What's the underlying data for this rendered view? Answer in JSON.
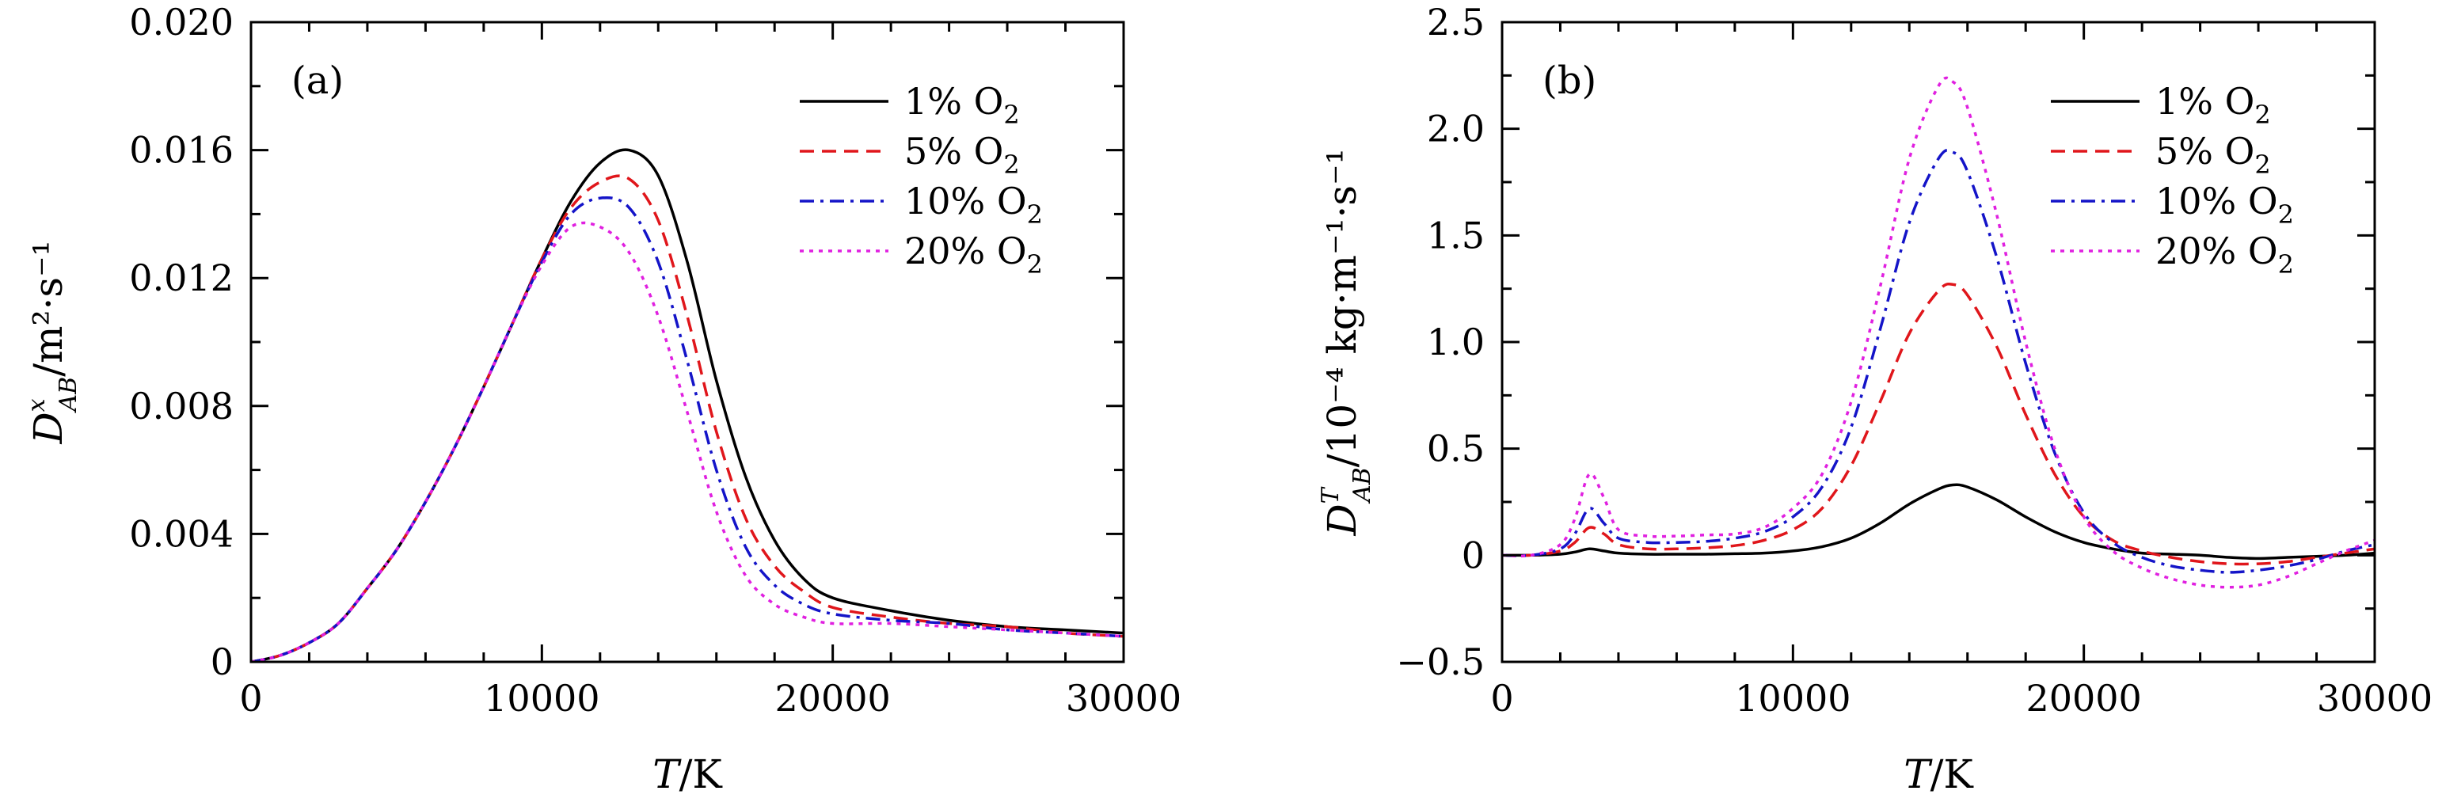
{
  "chart_data": [
    {
      "type": "line",
      "panel_label": "(a)",
      "xlabel": {
        "main": "T",
        "rest": "/K"
      },
      "ylabel": {
        "main": "D",
        "sup": "x",
        "sub": "AB",
        "rest": "/m²·s⁻¹"
      },
      "xlim": [
        0,
        30000
      ],
      "ylim": [
        0,
        0.02
      ],
      "xticks": [
        0,
        10000,
        20000,
        30000
      ],
      "xtick_labels": [
        "0",
        "10000",
        "20000",
        "30000"
      ],
      "yticks": [
        0,
        0.004,
        0.008,
        0.012,
        0.016,
        0.02
      ],
      "ytick_labels": [
        "0",
        "0.004",
        "0.008",
        "0.012",
        "0.016",
        "0.020"
      ],
      "legend_position": "upper-right",
      "grid": false,
      "x": [
        0,
        1000,
        2000,
        3000,
        4000,
        5000,
        6000,
        7000,
        8000,
        9000,
        10000,
        11000,
        12000,
        13000,
        14000,
        15000,
        16000,
        17000,
        18000,
        19000,
        20000,
        22000,
        24000,
        26000,
        28000,
        30000
      ],
      "series": [
        {
          "name": "1% O",
          "subscript": "2",
          "color": "#000000",
          "dash": "solid",
          "values": [
            0,
            0.0002,
            0.0006,
            0.0012,
            0.0023,
            0.0035,
            0.005,
            0.0067,
            0.0086,
            0.0106,
            0.0126,
            0.0144,
            0.0156,
            0.016,
            0.0152,
            0.0125,
            0.0088,
            0.0058,
            0.0038,
            0.0026,
            0.002,
            0.0016,
            0.0013,
            0.0011,
            0.001,
            0.0009
          ]
        },
        {
          "name": "5% O",
          "subscript": "2",
          "color": "#e0161b",
          "dash": "dashed",
          "values": [
            0,
            0.0002,
            0.0006,
            0.0012,
            0.0023,
            0.0035,
            0.005,
            0.0067,
            0.0086,
            0.0106,
            0.0126,
            0.0142,
            0.015,
            0.0151,
            0.0138,
            0.0108,
            0.0072,
            0.0045,
            0.003,
            0.0022,
            0.0017,
            0.0014,
            0.0012,
            0.0011,
            0.0009,
            0.0008
          ]
        },
        {
          "name": "10% O",
          "subscript": "2",
          "color": "#1414c8",
          "dash": "dashdot",
          "values": [
            0,
            0.0002,
            0.0006,
            0.0012,
            0.0023,
            0.0035,
            0.005,
            0.0067,
            0.0086,
            0.0106,
            0.0125,
            0.014,
            0.0145,
            0.0142,
            0.0125,
            0.0094,
            0.006,
            0.0036,
            0.0024,
            0.0018,
            0.0015,
            0.0013,
            0.0012,
            0.001,
            0.0009,
            0.0008
          ]
        },
        {
          "name": "20% O",
          "subscript": "2",
          "color": "#e020e0",
          "dash": "dotted",
          "values": [
            0,
            0.0002,
            0.0006,
            0.0012,
            0.0023,
            0.0035,
            0.005,
            0.0067,
            0.0086,
            0.0106,
            0.0124,
            0.0136,
            0.0136,
            0.0128,
            0.0108,
            0.0078,
            0.0047,
            0.0027,
            0.0018,
            0.0014,
            0.0012,
            0.0012,
            0.0011,
            0.001,
            0.0009,
            0.0008
          ]
        }
      ]
    },
    {
      "type": "line",
      "panel_label": "(b)",
      "xlabel": {
        "main": "T",
        "rest": "/K"
      },
      "ylabel": {
        "main": "D",
        "sup": "T",
        "sub": "AB",
        "rest": "/10⁻⁴ kg·m⁻¹·s⁻¹"
      },
      "xlim": [
        0,
        30000
      ],
      "ylim": [
        -0.5,
        2.5
      ],
      "xticks": [
        0,
        10000,
        20000,
        30000
      ],
      "xtick_labels": [
        "0",
        "10000",
        "20000",
        "30000"
      ],
      "yticks": [
        -0.5,
        0,
        0.5,
        1.0,
        1.5,
        2.0,
        2.5
      ],
      "ytick_labels": [
        "−0.5",
        "0",
        "0.5",
        "1.0",
        "1.5",
        "2.0",
        "2.5"
      ],
      "legend_position": "upper-right",
      "grid": false,
      "x": [
        0,
        1000,
        2000,
        2500,
        3000,
        3500,
        4000,
        5000,
        6000,
        7000,
        8000,
        9000,
        10000,
        11000,
        12000,
        13000,
        14000,
        15000,
        15500,
        16000,
        17000,
        18000,
        19000,
        20000,
        21000,
        22000,
        23000,
        24000,
        25000,
        26000,
        27000,
        28000,
        29000,
        30000
      ],
      "series": [
        {
          "name": "1% O",
          "subscript": "2",
          "color": "#000000",
          "dash": "solid",
          "values": [
            0,
            0,
            0.005,
            0.015,
            0.03,
            0.02,
            0.01,
            0.005,
            0.005,
            0.005,
            0.007,
            0.01,
            0.02,
            0.04,
            0.08,
            0.15,
            0.24,
            0.31,
            0.33,
            0.32,
            0.26,
            0.18,
            0.11,
            0.06,
            0.03,
            0.01,
            0.005,
            0,
            -0.01,
            -0.015,
            -0.01,
            -0.005,
            0,
            0.01
          ]
        },
        {
          "name": "5% O",
          "subscript": "2",
          "color": "#e0161b",
          "dash": "dashed",
          "values": [
            0,
            0,
            0.02,
            0.06,
            0.13,
            0.1,
            0.05,
            0.03,
            0.03,
            0.035,
            0.045,
            0.07,
            0.12,
            0.22,
            0.42,
            0.72,
            1.04,
            1.24,
            1.27,
            1.22,
            0.98,
            0.66,
            0.38,
            0.18,
            0.07,
            0.02,
            -0.01,
            -0.03,
            -0.04,
            -0.04,
            -0.03,
            -0.01,
            0.01,
            0.03
          ]
        },
        {
          "name": "10% O",
          "subscript": "2",
          "color": "#1414c8",
          "dash": "dashdot",
          "values": [
            0,
            0,
            0.03,
            0.1,
            0.22,
            0.15,
            0.08,
            0.06,
            0.06,
            0.065,
            0.08,
            0.11,
            0.18,
            0.32,
            0.6,
            1.06,
            1.56,
            1.86,
            1.89,
            1.8,
            1.4,
            0.9,
            0.48,
            0.2,
            0.06,
            -0.01,
            -0.05,
            -0.07,
            -0.08,
            -0.07,
            -0.05,
            -0.02,
            0.02,
            0.05
          ]
        },
        {
          "name": "20% O",
          "subscript": "2",
          "color": "#e020e0",
          "dash": "dotted",
          "values": [
            0,
            0,
            0.05,
            0.17,
            0.38,
            0.27,
            0.12,
            0.09,
            0.09,
            0.095,
            0.1,
            0.13,
            0.22,
            0.38,
            0.72,
            1.26,
            1.86,
            2.2,
            2.22,
            2.1,
            1.6,
            1.0,
            0.5,
            0.18,
            0.02,
            -0.06,
            -0.11,
            -0.14,
            -0.15,
            -0.14,
            -0.1,
            -0.04,
            0.02,
            0.07
          ]
        }
      ]
    }
  ]
}
